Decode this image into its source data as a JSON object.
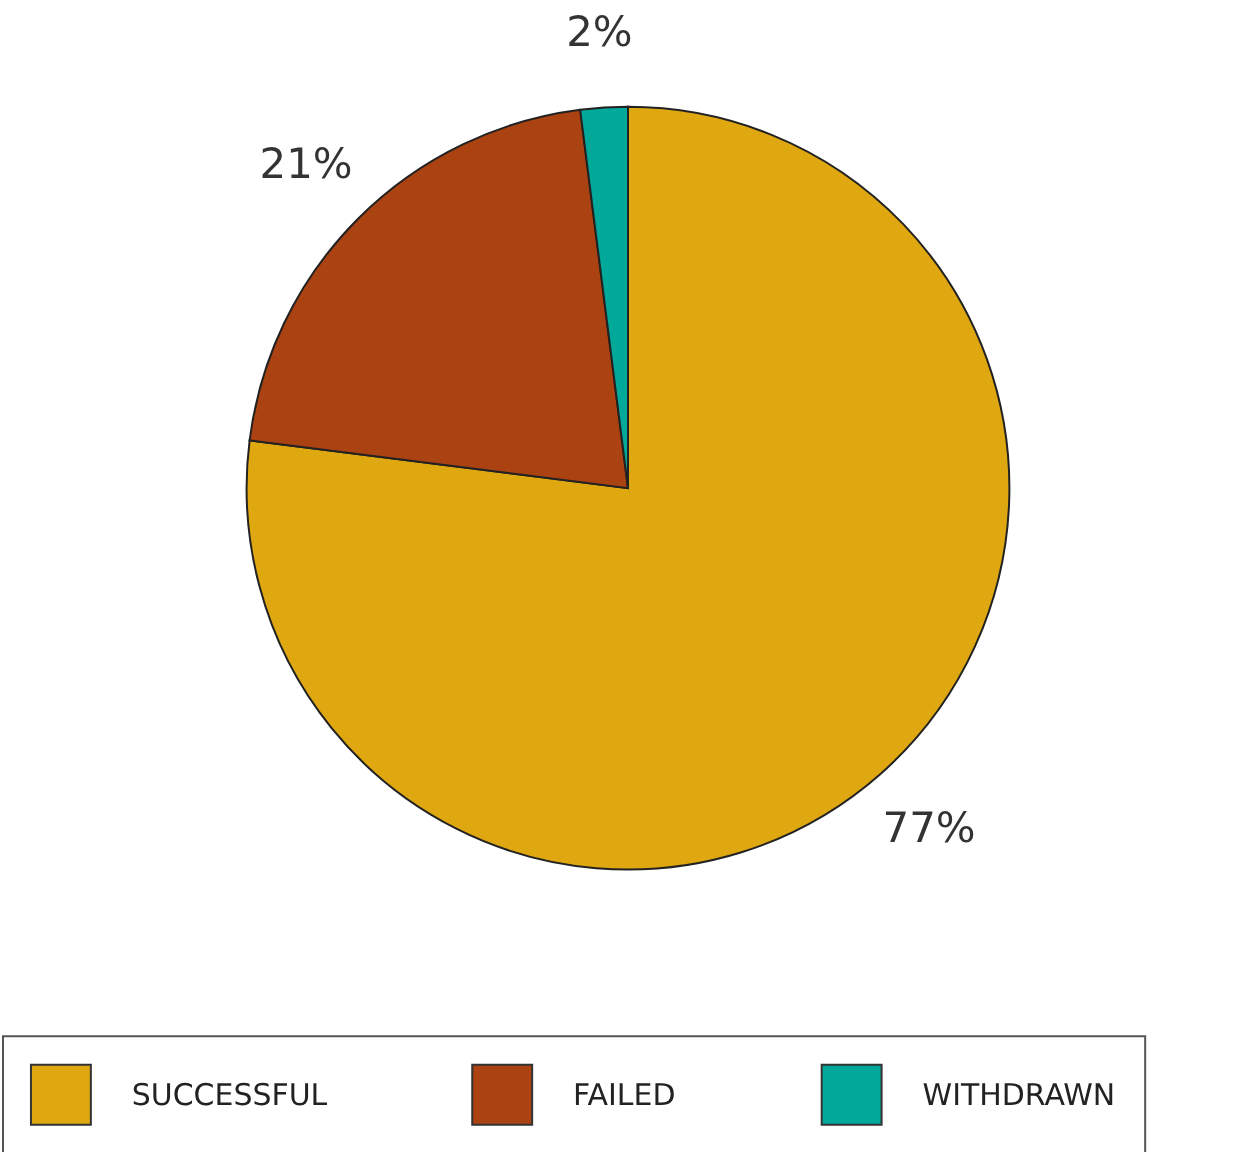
{
  "chart_data": {
    "type": "pie",
    "categories": [
      "SUCCESSFUL",
      "FAILED",
      "WITHDRAWN"
    ],
    "values": [
      77,
      21,
      2
    ],
    "colors": [
      "#e0a810",
      "#ab4212",
      "#00a99a"
    ],
    "value_labels": [
      "77%",
      "21%",
      "2%"
    ],
    "legend": "bottom"
  }
}
